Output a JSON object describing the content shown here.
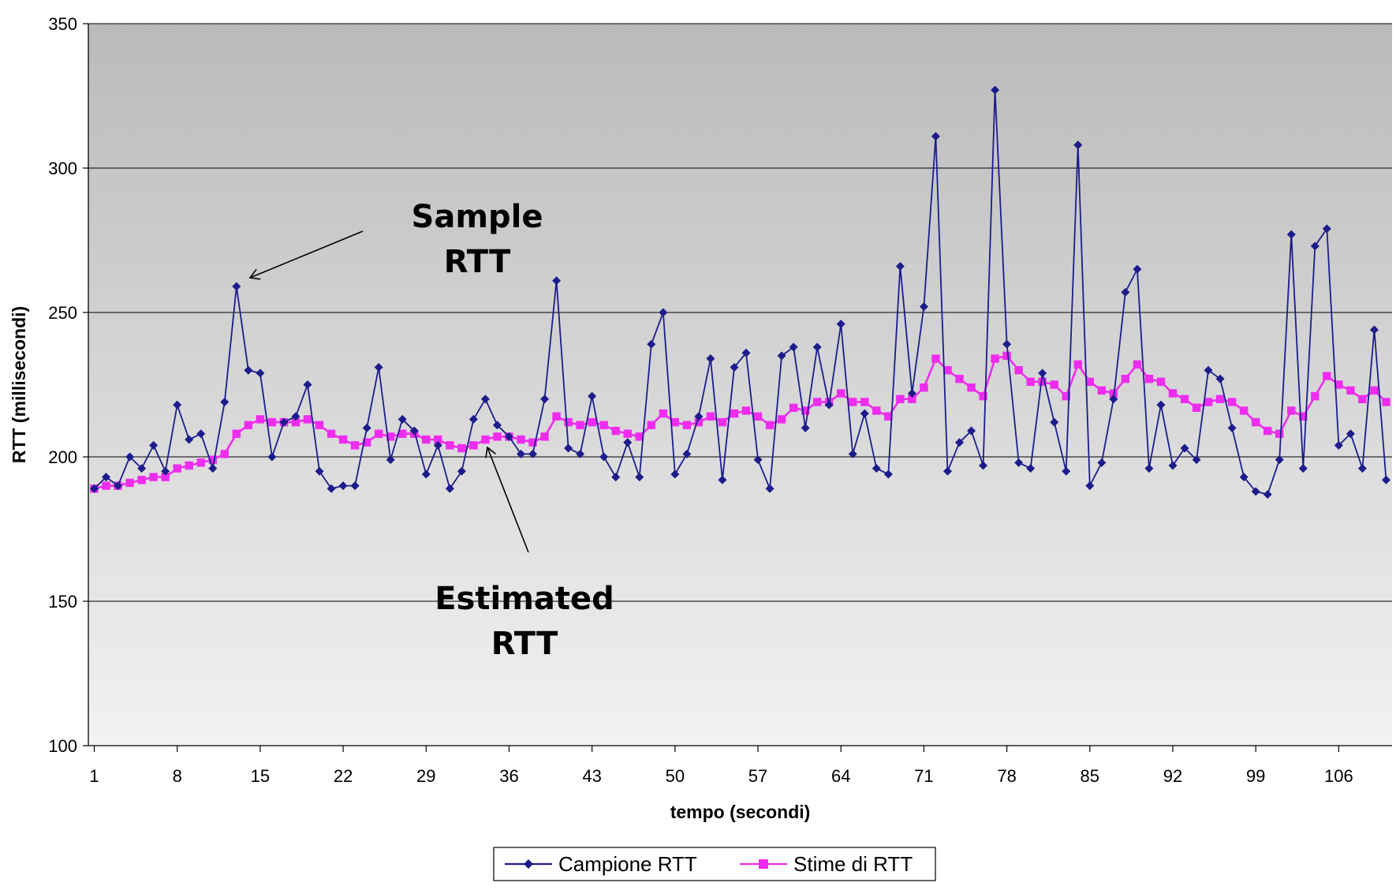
{
  "chart_data": {
    "type": "line",
    "title": "",
    "xlabel": "tempo (secondi)",
    "ylabel": "RTT (millisecondi)",
    "ylim": [
      100,
      350
    ],
    "yticks": [
      100,
      150,
      200,
      250,
      300,
      350
    ],
    "xtick_labels": [
      "1",
      "8",
      "15",
      "22",
      "29",
      "36",
      "43",
      "50",
      "57",
      "64",
      "71",
      "78",
      "85",
      "92",
      "99",
      "106"
    ],
    "grid": "horizontal",
    "legend_position": "bottom-center",
    "x": [
      1,
      2,
      3,
      4,
      5,
      6,
      7,
      8,
      9,
      10,
      11,
      12,
      13,
      14,
      15,
      16,
      17,
      18,
      19,
      20,
      21,
      22,
      23,
      24,
      25,
      26,
      27,
      28,
      29,
      30,
      31,
      32,
      33,
      34,
      35,
      36,
      37,
      38,
      39,
      40,
      41,
      42,
      43,
      44,
      45,
      46,
      47,
      48,
      49,
      50,
      51,
      52,
      53,
      54,
      55,
      56,
      57,
      58,
      59,
      60,
      61,
      62,
      63,
      64,
      65,
      66,
      67,
      68,
      69,
      70,
      71,
      72,
      73,
      74,
      75,
      76,
      77,
      78,
      79,
      80,
      81,
      82,
      83,
      84,
      85,
      86,
      87,
      88,
      89,
      90,
      91,
      92,
      93,
      94,
      95,
      96,
      97,
      98,
      99,
      100,
      101,
      102,
      103,
      104,
      105,
      106,
      107,
      108,
      109,
      110
    ],
    "series": [
      {
        "name": "Campione RTT",
        "color": "#1c1c8c",
        "marker": "diamond",
        "values": [
          189,
          193,
          190,
          200,
          196,
          204,
          195,
          218,
          206,
          208,
          196,
          219,
          259,
          230,
          229,
          200,
          212,
          214,
          225,
          195,
          189,
          190,
          190,
          210,
          231,
          199,
          213,
          209,
          194,
          204,
          189,
          195,
          213,
          220,
          211,
          207,
          201,
          201,
          220,
          261,
          203,
          201,
          221,
          200,
          193,
          205,
          193,
          239,
          250,
          194,
          201,
          214,
          234,
          192,
          231,
          236,
          199,
          189,
          235,
          238,
          210,
          238,
          218,
          246,
          201,
          215,
          196,
          194,
          266,
          222,
          252,
          311,
          195,
          205,
          209,
          197,
          327,
          239,
          198,
          196,
          229,
          212,
          195,
          308,
          190,
          198,
          220,
          257,
          265,
          196,
          218,
          197,
          203,
          199,
          230,
          227,
          210,
          193,
          188,
          187,
          199,
          277,
          196,
          273,
          279,
          204,
          208,
          196,
          244,
          192
        ]
      },
      {
        "name": "Stime di RTT",
        "color": "#ee2cee",
        "marker": "square",
        "values": [
          189,
          190,
          190,
          191,
          192,
          193,
          193,
          196,
          197,
          198,
          199,
          201,
          208,
          211,
          213,
          212,
          212,
          212,
          213,
          211,
          208,
          206,
          204,
          205,
          208,
          207,
          208,
          208,
          206,
          206,
          204,
          203,
          204,
          206,
          207,
          207,
          206,
          205,
          207,
          214,
          212,
          211,
          212,
          211,
          209,
          208,
          207,
          211,
          215,
          212,
          211,
          212,
          214,
          212,
          215,
          216,
          214,
          211,
          213,
          217,
          216,
          219,
          219,
          222,
          219,
          219,
          216,
          214,
          220,
          220,
          224,
          234,
          230,
          227,
          224,
          221,
          234,
          235,
          230,
          226,
          226,
          225,
          221,
          232,
          226,
          223,
          222,
          227,
          232,
          227,
          226,
          222,
          220,
          217,
          219,
          220,
          219,
          216,
          212,
          209,
          208,
          216,
          214,
          221,
          228,
          225,
          223,
          220,
          223,
          219
        ]
      }
    ],
    "annotations": [
      {
        "lines": [
          "Sample",
          "RTT"
        ]
      },
      {
        "lines": [
          "Estimated",
          "RTT"
        ]
      }
    ],
    "background_gradient": [
      "#bababa",
      "#f2f2f2"
    ]
  }
}
